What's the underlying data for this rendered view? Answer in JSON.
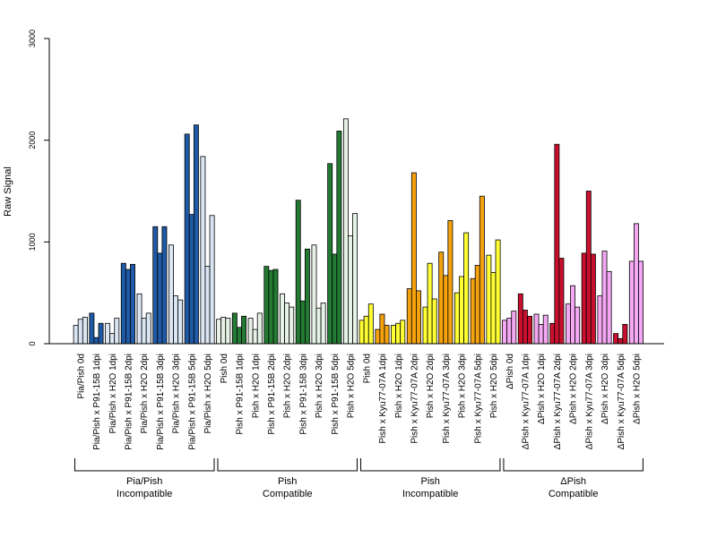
{
  "chart_data": {
    "type": "bar",
    "title": "",
    "xlabel": "",
    "ylabel": "Raw Signal",
    "ylim": [
      0,
      3000
    ],
    "yticks": [
      0,
      1000,
      2000,
      3000
    ],
    "grid": false,
    "legend": "none",
    "categories": [
      {
        "label": "Pia/Pish 0d",
        "color": "#dbe6f4",
        "values": [
          180,
          240,
          260
        ]
      },
      {
        "label": "Pia/Pish x P91-15B 1dpi",
        "color": "#1f5aa6",
        "values": [
          300,
          60,
          200
        ]
      },
      {
        "label": "Pia/Pish x H2O 1dpi",
        "color": "#dbe6f4",
        "values": [
          200,
          100,
          250
        ]
      },
      {
        "label": "Pia/Pish x P91-15B 2dpi",
        "color": "#1f5aa6",
        "values": [
          790,
          730,
          780
        ]
      },
      {
        "label": "Pia/Pish x H2O 2dpi",
        "color": "#dbe6f4",
        "values": [
          490,
          250,
          300
        ]
      },
      {
        "label": "Pia/Pish x P91-15B 3dpi",
        "color": "#1f5aa6",
        "values": [
          1150,
          890,
          1150
        ]
      },
      {
        "label": "Pia/Pish x H2O 3dpi",
        "color": "#dbe6f4",
        "values": [
          970,
          470,
          430
        ]
      },
      {
        "label": "Pia/Pish x P91-15B 5dpi",
        "color": "#1f5aa6",
        "values": [
          2060,
          1270,
          2150
        ]
      },
      {
        "label": "Pia/Pish x H2O 5dpi",
        "color": "#dbe6f4",
        "values": [
          1840,
          760,
          1260
        ]
      },
      {
        "label": "Pish 0d",
        "color": "#e6f2e6",
        "values": [
          240,
          260,
          250
        ]
      },
      {
        "label": "Pish x P91-15B 1dpi",
        "color": "#237a33",
        "values": [
          300,
          160,
          270
        ]
      },
      {
        "label": "Pish x H2O 1dpi",
        "color": "#e6f2e6",
        "values": [
          250,
          140,
          300
        ]
      },
      {
        "label": "Pish x P91-15B 2dpi",
        "color": "#237a33",
        "values": [
          760,
          720,
          730
        ]
      },
      {
        "label": "Pish x H2O 2dpi",
        "color": "#e6f2e6",
        "values": [
          490,
          400,
          360
        ]
      },
      {
        "label": "Pish x P91-15B 3dpi",
        "color": "#237a33",
        "values": [
          1410,
          420,
          930
        ]
      },
      {
        "label": "Pish x H2O 3dpi",
        "color": "#e6f2e6",
        "values": [
          970,
          350,
          400
        ]
      },
      {
        "label": "Pish x P91-15B 5dpi",
        "color": "#237a33",
        "values": [
          1770,
          880,
          2090
        ]
      },
      {
        "label": "Pish x H2O 5dpi",
        "color": "#e6f2e6",
        "values": [
          2210,
          1060,
          1280
        ]
      },
      {
        "label": "Pish 0d",
        "color": "#ffff33",
        "values": [
          230,
          270,
          390
        ]
      },
      {
        "label": "Pish x Kyu77-07A 1dpi",
        "color": "#f5a20f",
        "values": [
          140,
          290,
          180
        ]
      },
      {
        "label": "Pish x H2O 1dpi",
        "color": "#ffff33",
        "values": [
          180,
          200,
          230
        ]
      },
      {
        "label": "Pish x Kyu77-07A 2dpi",
        "color": "#f5a20f",
        "values": [
          540,
          1680,
          520
        ]
      },
      {
        "label": "Pish x H2O 2dpi",
        "color": "#ffff33",
        "values": [
          360,
          790,
          440
        ]
      },
      {
        "label": "Pish x Kyu77-07A 3dpi",
        "color": "#f5a20f",
        "values": [
          900,
          670,
          1210
        ]
      },
      {
        "label": "Pish x H2O 3dpi",
        "color": "#ffff33",
        "values": [
          500,
          660,
          1090
        ]
      },
      {
        "label": "Pish x Kyu77-07A 5dpi",
        "color": "#f5a20f",
        "values": [
          640,
          770,
          1450
        ]
      },
      {
        "label": "Pish x H2O 5dpi",
        "color": "#ffff33",
        "values": [
          870,
          700,
          1020
        ]
      },
      {
        "label": "ΔPish 0d",
        "color": "#f4a8f4",
        "values": [
          230,
          250,
          320
        ]
      },
      {
        "label": "ΔPish x Kyu77-07A 1dpi",
        "color": "#c8102e",
        "values": [
          490,
          330,
          270
        ]
      },
      {
        "label": "ΔPish x H2O 1dpi",
        "color": "#f4a8f4",
        "values": [
          290,
          190,
          280
        ]
      },
      {
        "label": "ΔPish x Kyu77-07A 2dpi",
        "color": "#c8102e",
        "values": [
          200,
          1960,
          840
        ]
      },
      {
        "label": "ΔPish x H2O 2dpi",
        "color": "#f4a8f4",
        "values": [
          390,
          570,
          360
        ]
      },
      {
        "label": "ΔPish x Kyu77-07A 3dpi",
        "color": "#c8102e",
        "values": [
          890,
          1500,
          880
        ]
      },
      {
        "label": "ΔPish x H2O 3dpi",
        "color": "#f4a8f4",
        "values": [
          470,
          910,
          710
        ]
      },
      {
        "label": "ΔPish x Kyu77-07A 5dpi",
        "color": "#c8102e",
        "values": [
          100,
          50,
          190
        ]
      },
      {
        "label": "ΔPish x H2O 5dpi",
        "color": "#f4a8f4",
        "values": [
          810,
          1180,
          810
        ]
      }
    ],
    "groups": [
      {
        "line1": "Pia/Pish",
        "line2": "Incompatible",
        "start": 0,
        "end": 8
      },
      {
        "line1": "Pish",
        "line2": "Compatible",
        "start": 9,
        "end": 17
      },
      {
        "line1": "Pish",
        "line2": "Incompatible",
        "start": 18,
        "end": 26
      },
      {
        "line1": "ΔPish",
        "line2": "Compatible",
        "start": 27,
        "end": 35
      }
    ]
  }
}
